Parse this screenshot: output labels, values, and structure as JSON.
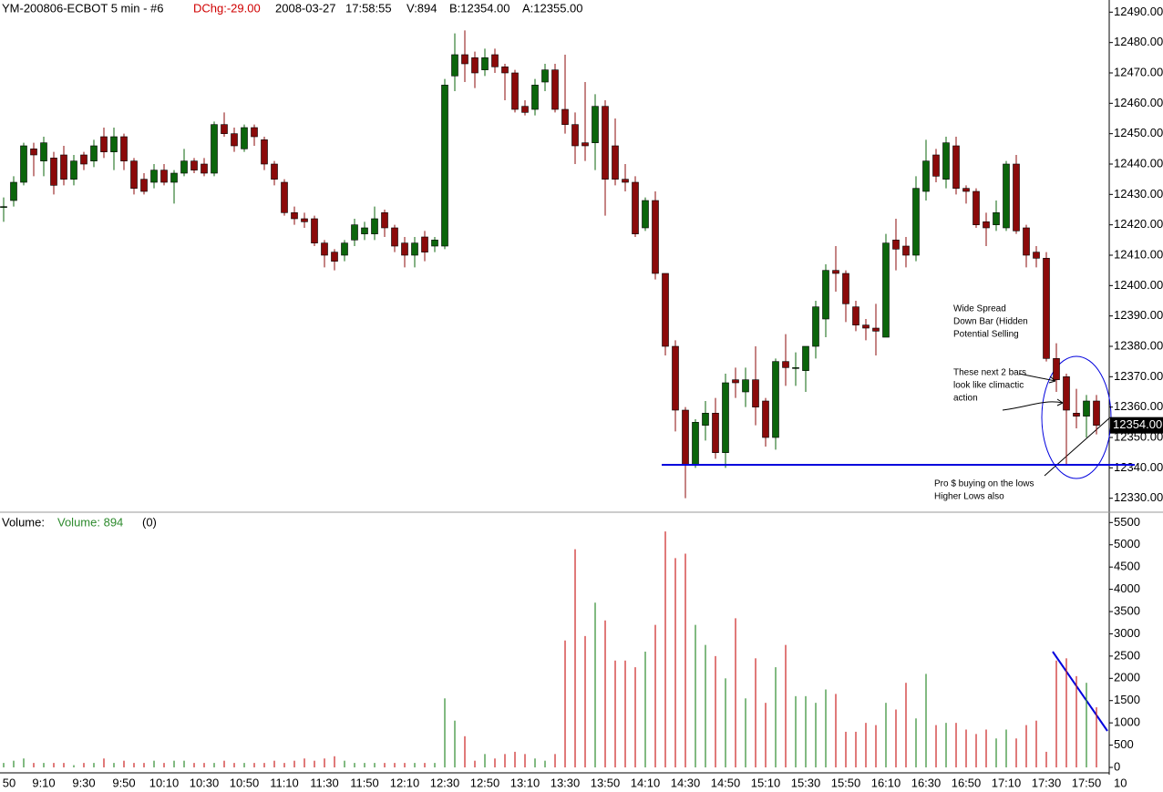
{
  "chart_data": {
    "type": "candlestick",
    "header": {
      "symbol": "YM-200806-ECBOT  5 min  - #6",
      "dchg": "DChg:-29.00",
      "date": "2008-03-27",
      "time": "17:58:55",
      "volume": "V:894",
      "bid": "B:12354.00",
      "ask": "A:12355.00"
    },
    "volume_header": {
      "title": "Volume:",
      "value": "Volume: 894",
      "extra": "(0)"
    },
    "up_color": "#0b650b",
    "down_color": "#8b0a0a",
    "volume_up_color": "#2e8b2e",
    "volume_down_color": "#cc2222",
    "line_color": "#0000dd",
    "last_price": {
      "value": 12354,
      "label": "12354.00"
    },
    "support_line": 12341,
    "corner_label": "10",
    "annotations": [
      [
        "Wide Spread",
        "Down Bar (Hidden",
        "Potential Selling"
      ],
      [
        "These next 2 bars",
        "look like climactic",
        "action"
      ],
      [
        "Pro $ buying on the lows",
        "Higher Lows also"
      ]
    ],
    "categories": [
      "50",
      null,
      null,
      null,
      "9:10",
      null,
      null,
      null,
      "9:30",
      null,
      null,
      null,
      "9:50",
      null,
      null,
      null,
      "10:10",
      null,
      null,
      null,
      "10:30",
      null,
      null,
      null,
      "10:50",
      null,
      null,
      null,
      "11:10",
      null,
      null,
      null,
      "11:30",
      null,
      null,
      null,
      "11:50",
      null,
      null,
      null,
      "12:10",
      null,
      null,
      null,
      "12:30",
      null,
      null,
      null,
      "12:50",
      null,
      null,
      null,
      "13:10",
      null,
      null,
      null,
      "13:30",
      null,
      null,
      null,
      "13:50",
      null,
      null,
      null,
      "14:10",
      null,
      null,
      null,
      "14:30",
      null,
      null,
      null,
      "14:50",
      null,
      null,
      null,
      "15:10",
      null,
      null,
      null,
      "15:30",
      null,
      null,
      null,
      "15:50",
      null,
      null,
      null,
      "16:10",
      null,
      null,
      null,
      "16:30",
      null,
      null,
      null,
      "16:50",
      null,
      null,
      null,
      "17:10",
      null,
      null,
      null,
      "17:30",
      null,
      null,
      null,
      "17:50",
      null
    ],
    "bars": [
      [
        12426,
        12429,
        12421,
        12426
      ],
      [
        12428,
        12436,
        12426,
        12434
      ],
      [
        12434,
        12447,
        12433,
        12446
      ],
      [
        12445,
        12447,
        12436,
        12443
      ],
      [
        12441,
        12449,
        12436,
        12447
      ],
      [
        12442,
        12444,
        12430,
        12433
      ],
      [
        12443,
        12446,
        12433,
        12435
      ],
      [
        12435,
        12443,
        12433,
        12441
      ],
      [
        12443,
        12444,
        12438,
        12440
      ],
      [
        12441,
        12448,
        12439,
        12446
      ],
      [
        12449,
        12452,
        12442,
        12444
      ],
      [
        12444,
        12452,
        12438,
        12449
      ],
      [
        12449,
        12450,
        12438,
        12441
      ],
      [
        12441,
        12442,
        12430,
        12432
      ],
      [
        12435,
        12437,
        12430,
        12431
      ],
      [
        12434,
        12440,
        12432,
        12438
      ],
      [
        12438,
        12440,
        12433,
        12434
      ],
      [
        12434,
        12438,
        12427,
        12437
      ],
      [
        12437,
        12445,
        12436,
        12441
      ],
      [
        12441,
        12442,
        12437,
        12438
      ],
      [
        12440,
        12442,
        12436,
        12437
      ],
      [
        12437,
        12454,
        12436,
        12453
      ],
      [
        12453,
        12457,
        12449,
        12450
      ],
      [
        12450,
        12452,
        12444,
        12446
      ],
      [
        12445,
        12453,
        12444,
        12452
      ],
      [
        12452,
        12453,
        12446,
        12449
      ],
      [
        12448,
        12449,
        12438,
        12440
      ],
      [
        12440,
        12441,
        12433,
        12435
      ],
      [
        12434,
        12435,
        12423,
        12424
      ],
      [
        12424,
        12426,
        12420,
        12422
      ],
      [
        12422,
        12424,
        12419,
        12421
      ],
      [
        12422,
        12423,
        12413,
        12414
      ],
      [
        12414,
        12415,
        12406,
        12410
      ],
      [
        12411,
        12412,
        12405,
        12408
      ],
      [
        12410,
        12415,
        12408,
        12414
      ],
      [
        12415,
        12422,
        12413,
        12420
      ],
      [
        12417,
        12421,
        12415,
        12419
      ],
      [
        12417,
        12426,
        12415,
        12422
      ],
      [
        12424,
        12425,
        12416,
        12419
      ],
      [
        12419,
        12420,
        12411,
        12413
      ],
      [
        12414,
        12416,
        12406,
        12410
      ],
      [
        12410,
        12416,
        12406,
        12414
      ],
      [
        12416,
        12418,
        12408,
        12411
      ],
      [
        12413,
        12416,
        12411,
        12415
      ],
      [
        12413,
        12468,
        12412,
        12466
      ],
      [
        12469,
        12483,
        12464,
        12476
      ],
      [
        12476,
        12484,
        12467,
        12473
      ],
      [
        12475,
        12477,
        12465,
        12470
      ],
      [
        12471,
        12478,
        12469,
        12475
      ],
      [
        12476,
        12478,
        12470,
        12472
      ],
      [
        12472,
        12473,
        12461,
        12470
      ],
      [
        12470,
        12471,
        12457,
        12458
      ],
      [
        12459,
        12461,
        12456,
        12457
      ],
      [
        12458,
        12468,
        12456,
        12466
      ],
      [
        12467,
        12473,
        12464,
        12471
      ],
      [
        12471,
        12473,
        12457,
        12458
      ],
      [
        12458,
        12476,
        12450,
        12453
      ],
      [
        12453,
        12457,
        12440,
        12446
      ],
      [
        12447,
        12467,
        12441,
        12446
      ],
      [
        12447,
        12463,
        12438,
        12459
      ],
      [
        12459,
        12461,
        12423,
        12435
      ],
      [
        12446,
        12455,
        12433,
        12435
      ],
      [
        12435,
        12440,
        12431,
        12434
      ],
      [
        12434,
        12436,
        12416,
        12417
      ],
      [
        12419,
        12429,
        12418,
        12428
      ],
      [
        12428,
        12431,
        12402,
        12404
      ],
      [
        12404,
        12404,
        12377,
        12380
      ],
      [
        12380,
        12382,
        12352,
        12359
      ],
      [
        12359,
        12360,
        12330,
        12341
      ],
      [
        12341,
        12356,
        12340,
        12355
      ],
      [
        12354,
        12362,
        12349,
        12358
      ],
      [
        12358,
        12363,
        12343,
        12345
      ],
      [
        12345,
        12371,
        12340,
        12368
      ],
      [
        12369,
        12373,
        12363,
        12368
      ],
      [
        12365,
        12373,
        12360,
        12369
      ],
      [
        12369,
        12380,
        12354,
        12360
      ],
      [
        12362,
        12363,
        12347,
        12350
      ],
      [
        12350,
        12376,
        12346,
        12375
      ],
      [
        12375,
        12384,
        12367,
        12373
      ],
      [
        12373,
        12378,
        12367,
        12373
      ],
      [
        12372,
        12380,
        12365,
        12380
      ],
      [
        12380,
        12395,
        12376,
        12393
      ],
      [
        12389,
        12407,
        12383,
        12405
      ],
      [
        12405,
        12413,
        12398,
        12404
      ],
      [
        12404,
        12405,
        12388,
        12394
      ],
      [
        12393,
        12395,
        12385,
        12387
      ],
      [
        12387,
        12389,
        12382,
        12386
      ],
      [
        12386,
        12394,
        12377,
        12385
      ],
      [
        12383,
        12417,
        12383,
        12414
      ],
      [
        12415,
        12422,
        12405,
        12412
      ],
      [
        12413,
        12416,
        12406,
        12410
      ],
      [
        12410,
        12436,
        12408,
        12432
      ],
      [
        12431,
        12448,
        12428,
        12441
      ],
      [
        12443,
        12445,
        12434,
        12436
      ],
      [
        12435,
        12449,
        12432,
        12447
      ],
      [
        12446,
        12449,
        12430,
        12432
      ],
      [
        12432,
        12433,
        12427,
        12431
      ],
      [
        12431,
        12432,
        12419,
        12420
      ],
      [
        12421,
        12424,
        12413,
        12419
      ],
      [
        12420,
        12428,
        12418,
        12424
      ],
      [
        12419,
        12441,
        12418,
        12440
      ],
      [
        12440,
        12443,
        12417,
        12418
      ],
      [
        12419,
        12420,
        12406,
        12410
      ],
      [
        12411,
        12413,
        12406,
        12409
      ],
      [
        12409,
        12411,
        12375,
        12376
      ],
      [
        12376,
        12381,
        12365,
        12369
      ],
      [
        12370,
        12371,
        12341,
        12359
      ],
      [
        12358,
        12366,
        12353,
        12357
      ],
      [
        12357,
        12364,
        12350,
        12362
      ],
      [
        12362,
        12364,
        12351,
        12354
      ]
    ],
    "volumes": [
      100,
      150,
      200,
      100,
      100,
      100,
      100,
      50,
      100,
      100,
      200,
      100,
      150,
      100,
      100,
      150,
      100,
      150,
      150,
      100,
      100,
      100,
      150,
      100,
      100,
      100,
      100,
      150,
      100,
      150,
      200,
      150,
      200,
      250,
      150,
      100,
      100,
      100,
      100,
      100,
      100,
      100,
      100,
      100,
      1550,
      1050,
      700,
      150,
      300,
      200,
      300,
      350,
      300,
      200,
      150,
      300,
      2850,
      4900,
      2950,
      3700,
      3300,
      2400,
      2400,
      2250,
      2600,
      3200,
      5300,
      4700,
      4800,
      3200,
      2750,
      2500,
      2000,
      3350,
      1550,
      2450,
      1450,
      2250,
      2750,
      1600,
      1600,
      1450,
      1750,
      1650,
      800,
      800,
      1000,
      950,
      1450,
      1300,
      1900,
      1100,
      2100,
      950,
      1000,
      1000,
      850,
      750,
      850,
      650,
      850,
      650,
      950,
      1050,
      350,
      2400,
      2450,
      2050,
      1900,
      1350
    ],
    "ylim": [
      12326,
      12494
    ],
    "yticks": [
      {
        "value": 12330,
        "label": "12330.00"
      },
      {
        "value": 12340,
        "label": "12340.00"
      },
      {
        "value": 12350,
        "label": "12350.00"
      },
      {
        "value": 12360,
        "label": "12360.00"
      },
      {
        "value": 12370,
        "label": "12370.00"
      },
      {
        "value": 12380,
        "label": "12380.00"
      },
      {
        "value": 12390,
        "label": "12390.00"
      },
      {
        "value": 12400,
        "label": "12400.00"
      },
      {
        "value": 12410,
        "label": "12410.00"
      },
      {
        "value": 12420,
        "label": "12420.00"
      },
      {
        "value": 12430,
        "label": "12430.00"
      },
      {
        "value": 12440,
        "label": "12440.00"
      },
      {
        "value": 12450,
        "label": "12450.00"
      },
      {
        "value": 12460,
        "label": "12460.00"
      },
      {
        "value": 12470,
        "label": "12470.00"
      },
      {
        "value": 12480,
        "label": "12480.00"
      },
      {
        "value": 12490,
        "label": "12490.00"
      }
    ],
    "y2lim": [
      0,
      5650
    ],
    "y2ticks": [
      0,
      500,
      1000,
      1500,
      2000,
      2500,
      3000,
      3500,
      4000,
      4500,
      5000,
      5500
    ]
  }
}
